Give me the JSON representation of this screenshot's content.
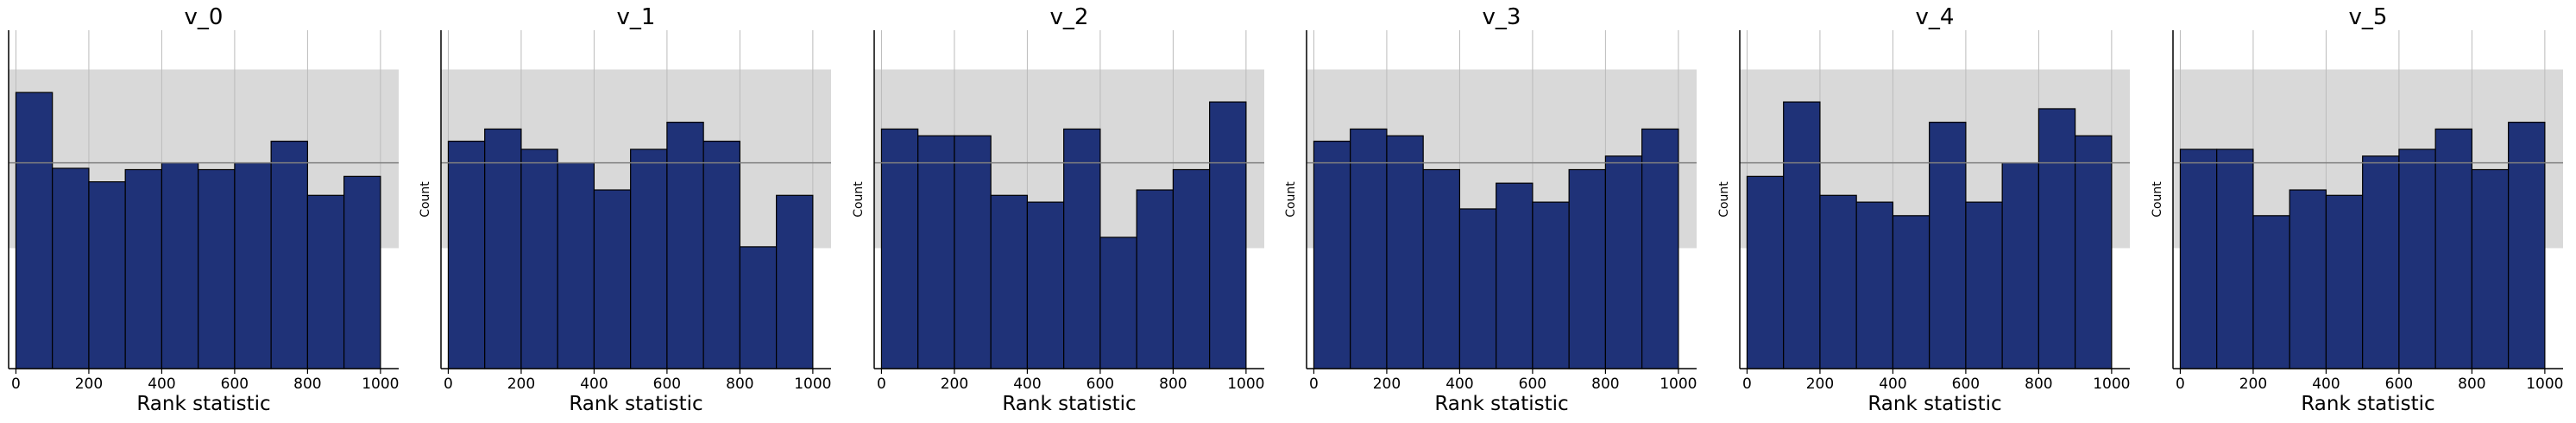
{
  "chart_data": [
    {
      "type": "bar",
      "title": "v_0",
      "xlabel": "Rank statistic",
      "ylabel": "",
      "xlim": [
        -20,
        1050
      ],
      "ylim": [
        0,
        250
      ],
      "bin_edges": [
        0,
        100,
        200,
        300,
        400,
        500,
        600,
        700,
        800,
        900,
        1000
      ],
      "values": [
        204,
        148,
        138,
        147,
        152,
        147,
        152,
        168,
        128,
        142
      ],
      "reference_line": 152,
      "reference_band": [
        89,
        221
      ],
      "grid": "vertical"
    },
    {
      "type": "bar",
      "title": "v_1",
      "xlabel": "Rank statistic",
      "ylabel": "Count",
      "xlim": [
        -20,
        1050
      ],
      "ylim": [
        0,
        250
      ],
      "bin_edges": [
        0,
        100,
        200,
        300,
        400,
        500,
        600,
        700,
        800,
        900,
        1000
      ],
      "values": [
        168,
        177,
        162,
        152,
        132,
        162,
        182,
        168,
        90,
        128
      ],
      "reference_line": 152,
      "reference_band": [
        89,
        221
      ],
      "grid": "vertical"
    },
    {
      "type": "bar",
      "title": "v_2",
      "xlabel": "Rank statistic",
      "ylabel": "Count",
      "xlim": [
        -20,
        1050
      ],
      "ylim": [
        0,
        250
      ],
      "bin_edges": [
        0,
        100,
        200,
        300,
        400,
        500,
        600,
        700,
        800,
        900,
        1000
      ],
      "values": [
        177,
        172,
        172,
        128,
        123,
        177,
        97,
        132,
        147,
        197
      ],
      "reference_line": 152,
      "reference_band": [
        89,
        221
      ],
      "grid": "vertical"
    },
    {
      "type": "bar",
      "title": "v_3",
      "xlabel": "Rank statistic",
      "ylabel": "Count",
      "xlim": [
        -20,
        1050
      ],
      "ylim": [
        0,
        250
      ],
      "bin_edges": [
        0,
        100,
        200,
        300,
        400,
        500,
        600,
        700,
        800,
        900,
        1000
      ],
      "values": [
        168,
        177,
        172,
        147,
        118,
        137,
        123,
        147,
        157,
        177
      ],
      "reference_line": 152,
      "reference_band": [
        89,
        221
      ],
      "grid": "vertical"
    },
    {
      "type": "bar",
      "title": "v_4",
      "xlabel": "Rank statistic",
      "ylabel": "Count",
      "xlim": [
        -20,
        1050
      ],
      "ylim": [
        0,
        250
      ],
      "bin_edges": [
        0,
        100,
        200,
        300,
        400,
        500,
        600,
        700,
        800,
        900,
        1000
      ],
      "values": [
        142,
        197,
        128,
        123,
        113,
        182,
        123,
        152,
        192,
        172
      ],
      "reference_line": 152,
      "reference_band": [
        89,
        221
      ],
      "grid": "vertical"
    },
    {
      "type": "bar",
      "title": "v_5",
      "xlabel": "Rank statistic",
      "ylabel": "Count",
      "xlim": [
        -20,
        1050
      ],
      "ylim": [
        0,
        250
      ],
      "bin_edges": [
        0,
        100,
        200,
        300,
        400,
        500,
        600,
        700,
        800,
        900,
        1000
      ],
      "values": [
        162,
        162,
        113,
        132,
        128,
        157,
        162,
        177,
        147,
        182
      ],
      "reference_line": 152,
      "reference_band": [
        89,
        221
      ],
      "grid": "vertical"
    }
  ],
  "x_ticks": [
    0,
    200,
    400,
    600,
    800,
    1000
  ],
  "colors": {
    "bar_fill": "#1f3278",
    "bar_edge": "#000000",
    "band": "#d9d9d9",
    "ref_line": "#7f7f7f",
    "grid": "#bbbbbb"
  }
}
